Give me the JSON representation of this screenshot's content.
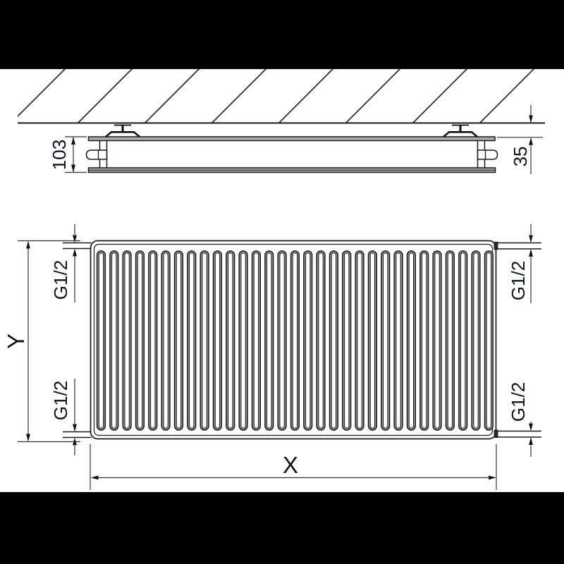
{
  "drawing": {
    "side_view": {
      "depth_label": "103",
      "wall_distance_label": "35"
    },
    "front_view": {
      "height_label": "Y",
      "width_label": "X",
      "groove_count": 31,
      "connections": {
        "top_left": "G1/2",
        "bottom_left": "G1/2",
        "top_right": "G1/2",
        "bottom_right": "G1/2"
      }
    },
    "colors": {
      "line": "#1a1a1a",
      "panel_gray": "#ababab",
      "groove_gray": "#9d9d9d",
      "background": "#ffffff",
      "letterbox": "#000000"
    }
  }
}
